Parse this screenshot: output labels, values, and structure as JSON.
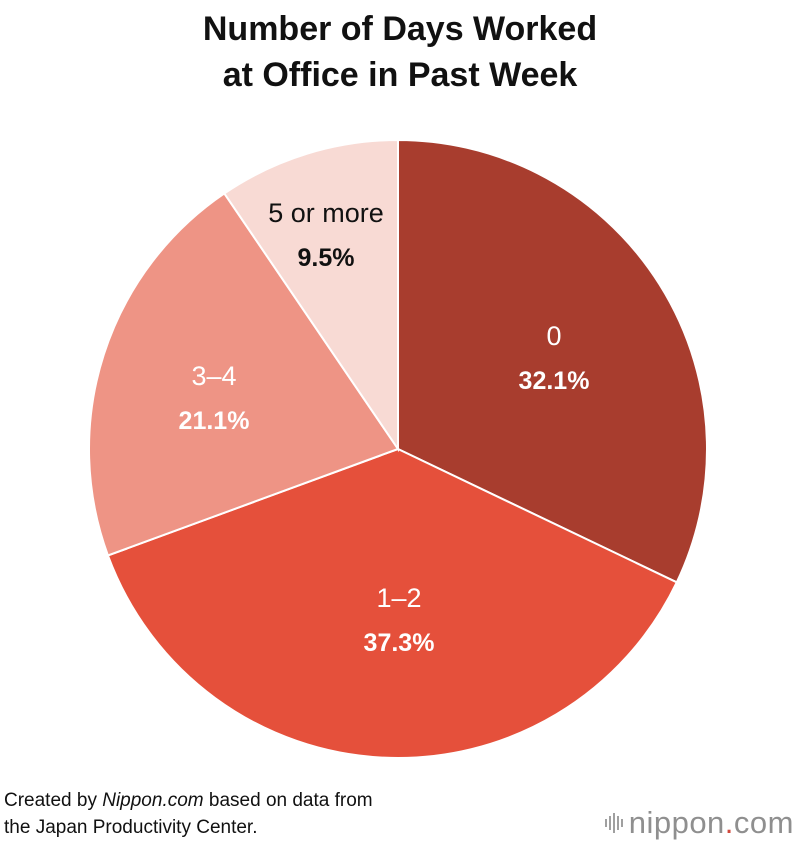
{
  "title": {
    "line1": "Number of Days Worked",
    "line2": "at Office in Past Week"
  },
  "chart_data": {
    "type": "pie",
    "title": "Number of Days Worked at Office in Past Week",
    "start": "12 o'clock",
    "direction": "clockwise",
    "slices": [
      {
        "label": "0",
        "value": 32.1,
        "value_label": "32.1%",
        "color": "#a83d2e",
        "text_color": "#ffffff"
      },
      {
        "label": "1–2",
        "value": 37.3,
        "value_label": "37.3%",
        "color": "#e5503b",
        "text_color": "#ffffff"
      },
      {
        "label": "3–4",
        "value": 21.1,
        "value_label": "21.1%",
        "color": "#ee9485",
        "text_color": "#ffffff"
      },
      {
        "label": "5 or more",
        "value": 9.5,
        "value_label": "9.5%",
        "color": "#f8dad4",
        "text_color": "#111111"
      }
    ]
  },
  "source": {
    "line1_prefix": "Created by ",
    "line1_brand": "Nippon.com",
    "line1_suffix": " based on data from",
    "line2": "the Japan Productivity Center."
  },
  "logo": {
    "word": "nippon",
    "dot": ".",
    "tld": "com",
    "dot_color": "#d0483c"
  }
}
